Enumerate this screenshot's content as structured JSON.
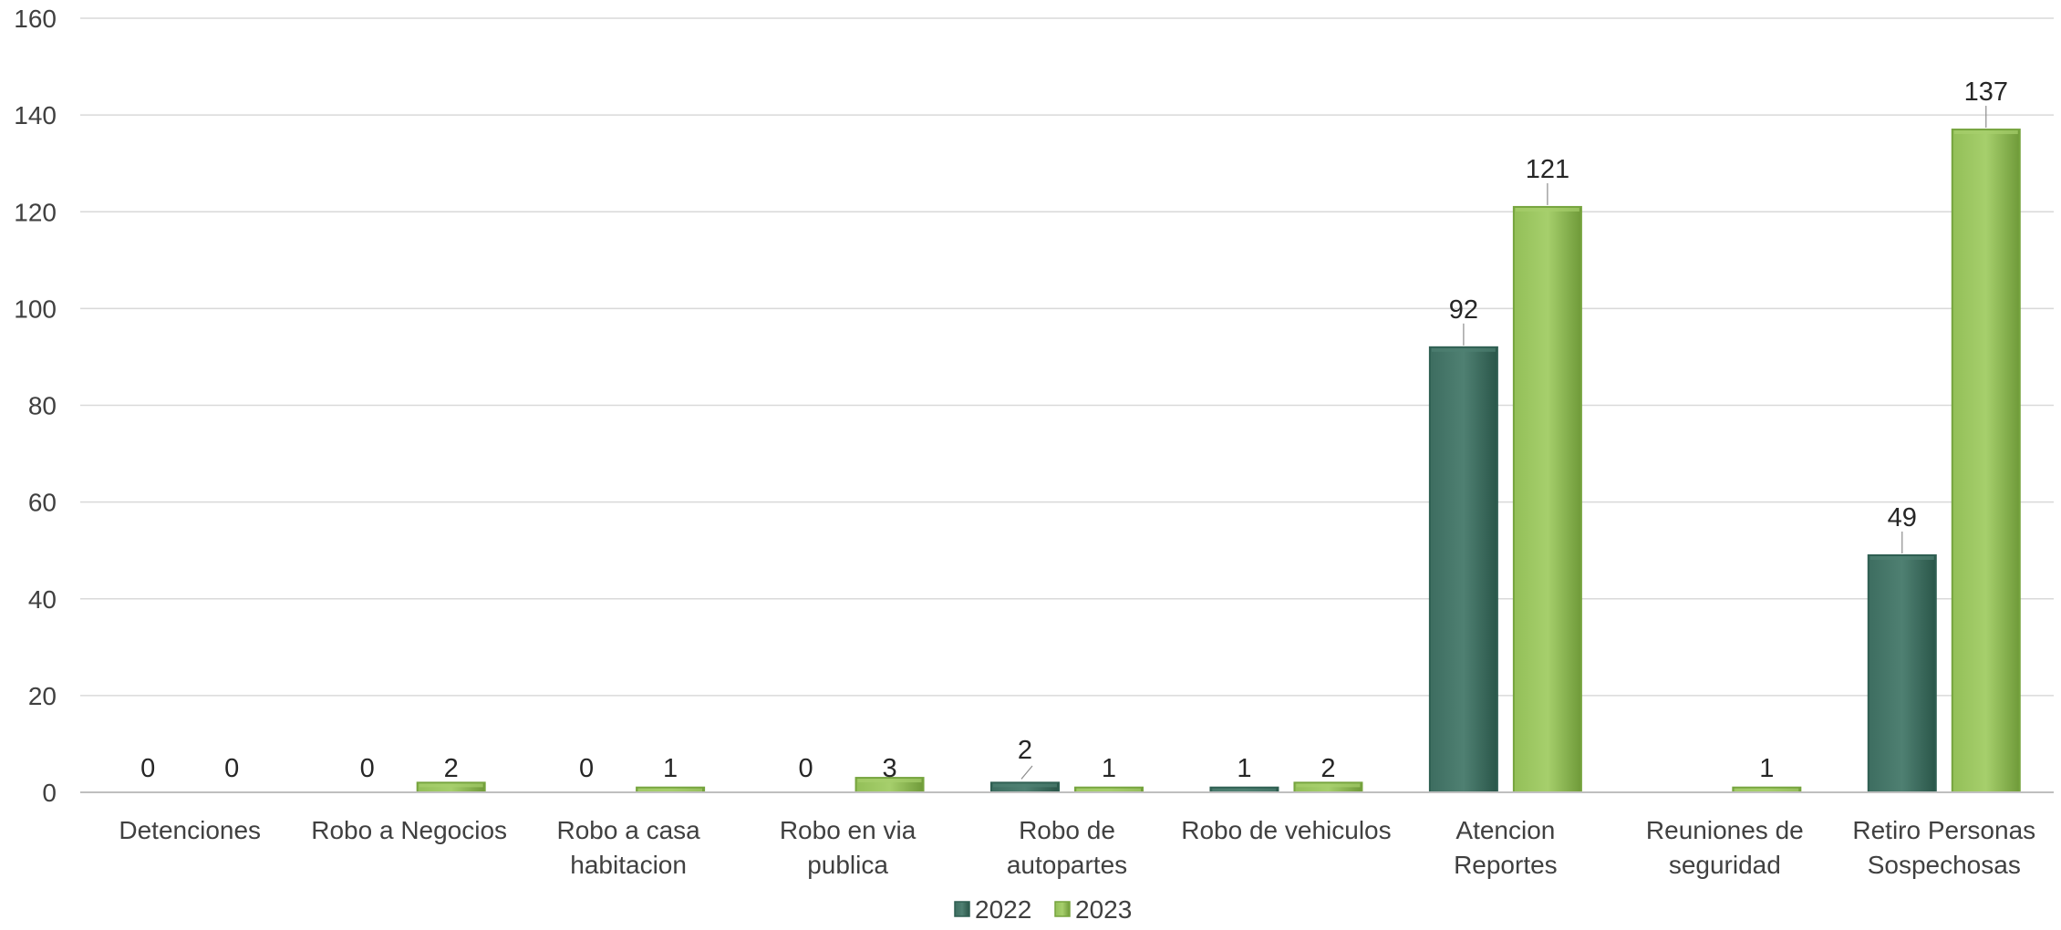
{
  "chart_data": {
    "type": "bar",
    "title": "",
    "xlabel": "",
    "ylabel": "",
    "ylim": [
      0,
      160
    ],
    "yticks": [
      0,
      20,
      40,
      60,
      80,
      100,
      120,
      140,
      160
    ],
    "grid": true,
    "legend_position": "bottom",
    "categories": [
      [
        "Detenciones"
      ],
      [
        "Robo a Negocios"
      ],
      [
        "Robo a casa",
        "habitacion"
      ],
      [
        "Robo en via",
        "publica"
      ],
      [
        "Robo de",
        "autopartes"
      ],
      [
        "Robo de vehiculos"
      ],
      [
        "Atencion",
        "Reportes"
      ],
      [
        "Reuniones de",
        "seguridad"
      ],
      [
        "Retiro Personas",
        "Sospechosas"
      ]
    ],
    "series": [
      {
        "name": "2022",
        "color": "#2f5f52",
        "color_light": "#4f8072",
        "values": [
          0,
          0,
          0,
          0,
          2,
          1,
          92,
          null,
          49
        ],
        "labels": [
          "0",
          "0",
          "0",
          "0",
          "2",
          "1",
          "92",
          "",
          "49"
        ]
      },
      {
        "name": "2023",
        "color": "#76a43e",
        "color_light": "#a6cf6c",
        "values": [
          0,
          2,
          1,
          3,
          1,
          2,
          121,
          1,
          137
        ],
        "labels": [
          "0",
          "2",
          "1",
          "3",
          "1",
          "2",
          "121",
          "1",
          "137"
        ]
      }
    ]
  }
}
